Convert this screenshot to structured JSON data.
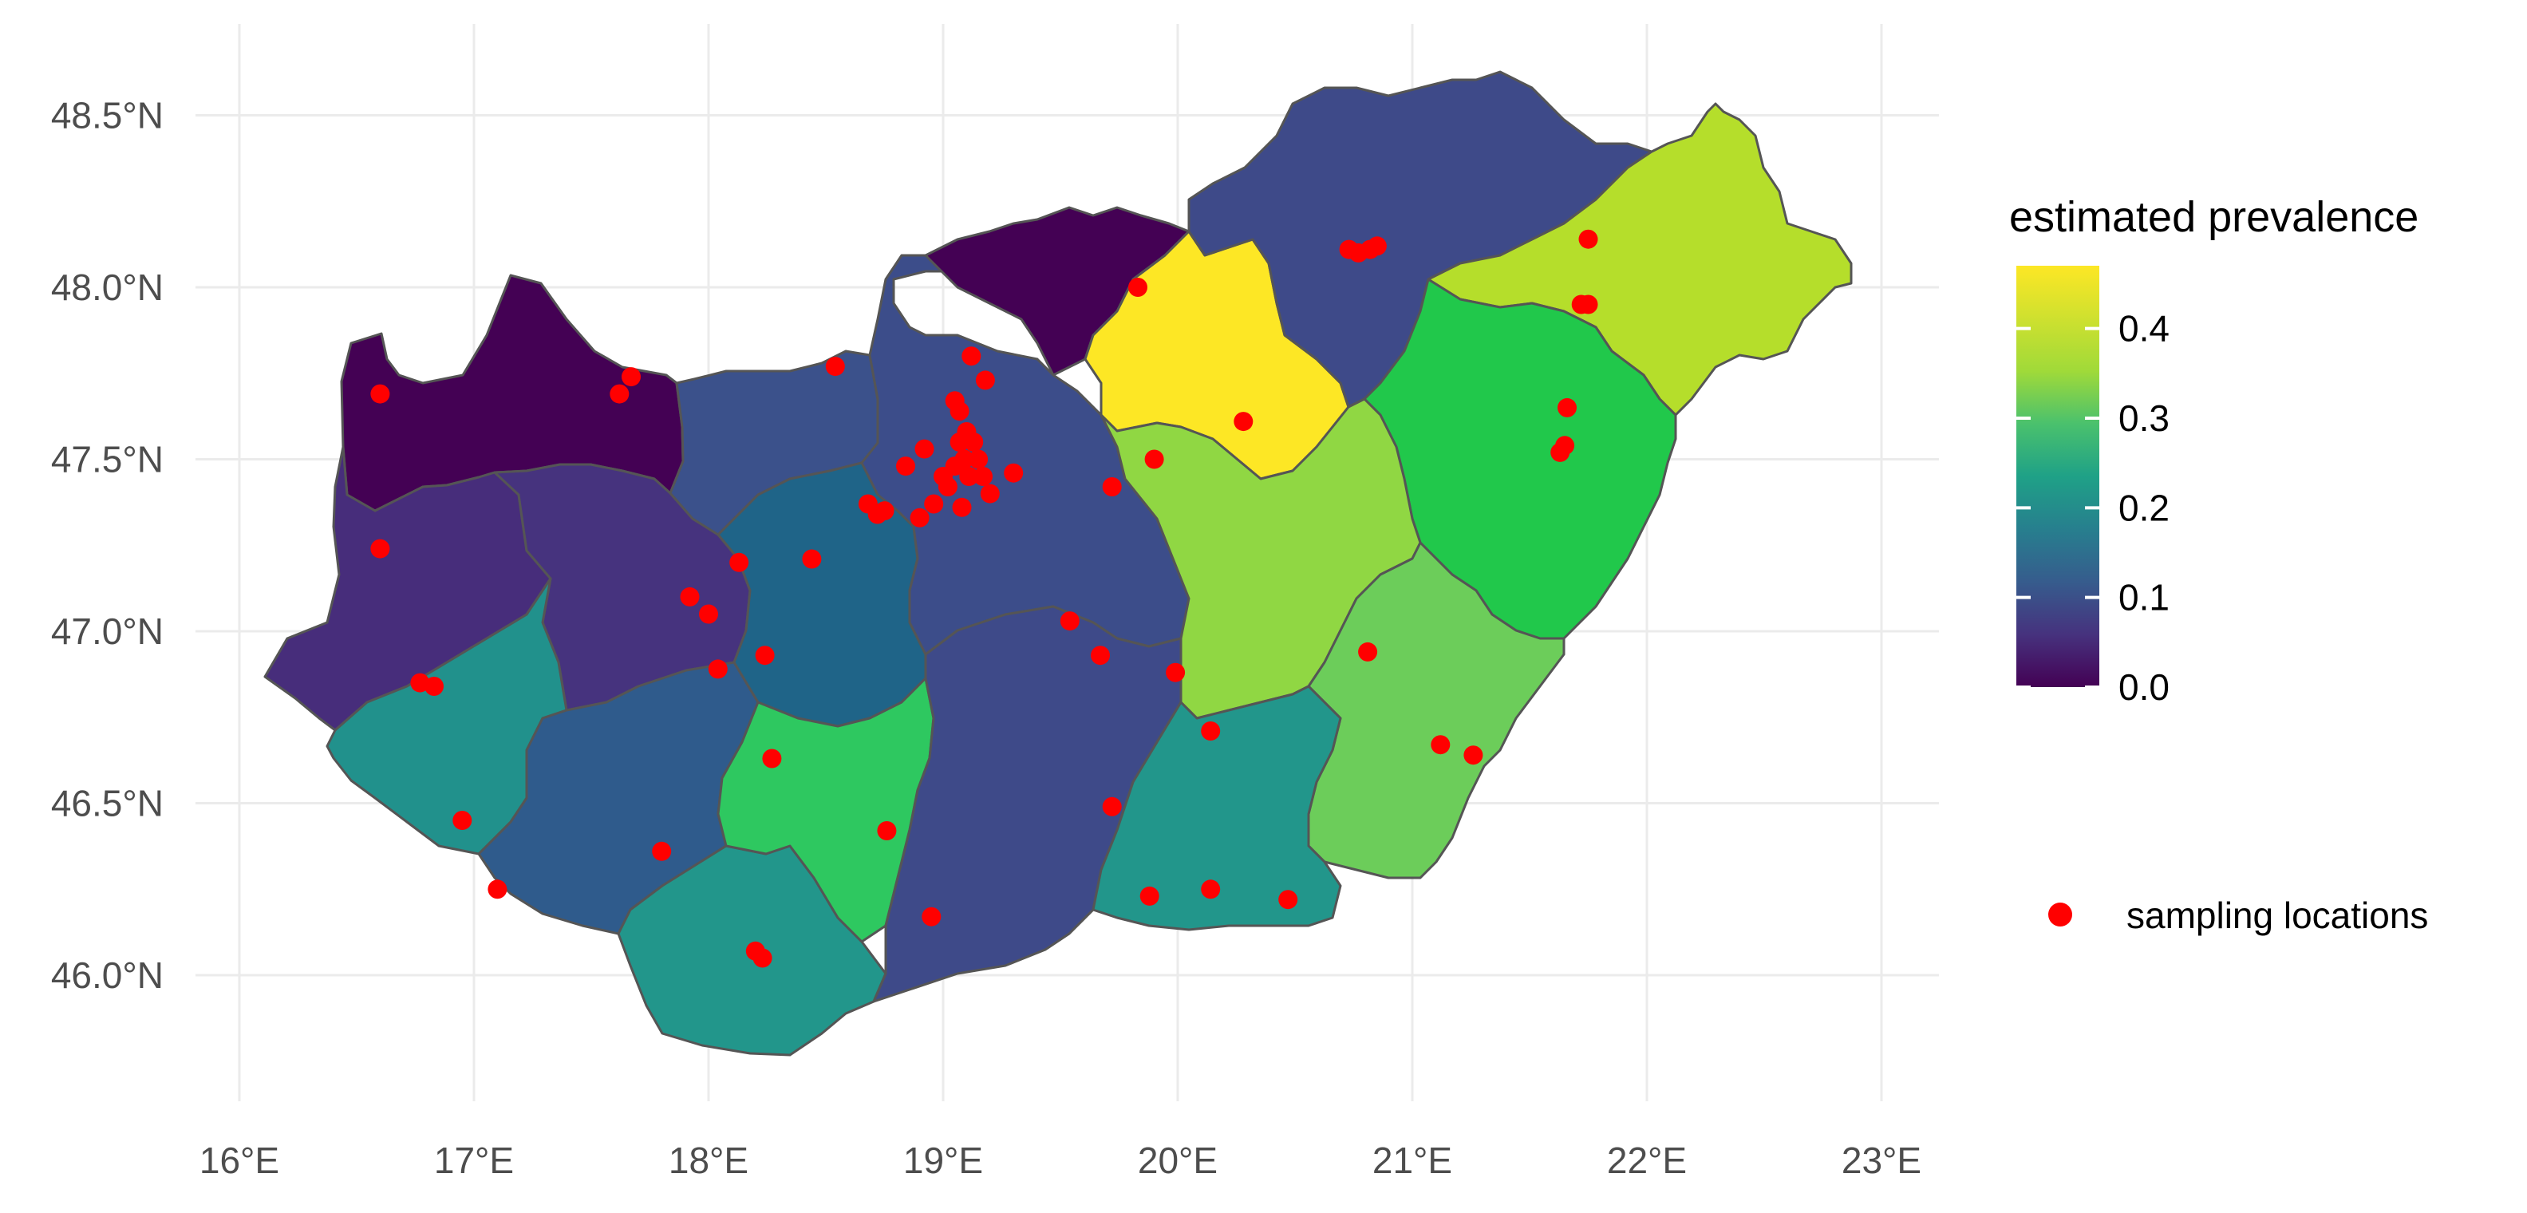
{
  "chart_data": {
    "type": "choropleth",
    "region": "Hungary counties",
    "axes": {
      "x_ticks": [
        "16°E",
        "17°E",
        "18°E",
        "19°E",
        "20°E",
        "21°E",
        "22°E",
        "23°E"
      ],
      "y_ticks": [
        "46.0°N",
        "46.5°N",
        "47.0°N",
        "47.5°N",
        "48.0°N",
        "48.5°N"
      ],
      "xlim": [
        15.9,
        23.2
      ],
      "ylim": [
        45.55,
        48.75
      ],
      "grid": true
    },
    "colorbar": {
      "title": "estimated prevalence",
      "scale": "viridis",
      "min": 0.0,
      "max": 0.47,
      "ticks": [
        0.0,
        0.1,
        0.2,
        0.3,
        0.4
      ],
      "tick_labels": [
        "0.0",
        "0.1",
        "0.2",
        "0.3",
        "0.4"
      ],
      "placement": "right"
    },
    "point_legend": {
      "label": "sampling locations",
      "color": "#ff0000"
    },
    "counties": [
      {
        "id": "gyor",
        "value": 0.02,
        "color": "#440154"
      },
      {
        "id": "vas",
        "value": 0.07,
        "color": "#472d7b"
      },
      {
        "id": "veszprem",
        "value": 0.06,
        "color": "#46337e"
      },
      {
        "id": "zala",
        "value": 0.26,
        "color": "#21918c"
      },
      {
        "id": "somogy",
        "value": 0.14,
        "color": "#2f5b8c"
      },
      {
        "id": "baranya",
        "value": 0.25,
        "color": "#22968b"
      },
      {
        "id": "komarom",
        "value": 0.12,
        "color": "#3b518b"
      },
      {
        "id": "fejer",
        "value": 0.19,
        "color": "#1f6488"
      },
      {
        "id": "tolna",
        "value": 0.35,
        "color": "#2ec860"
      },
      {
        "id": "pest",
        "value": 0.11,
        "color": "#3c4d8a"
      },
      {
        "id": "bacs",
        "value": 0.11,
        "color": "#3e4a89"
      },
      {
        "id": "nograd",
        "value": 0.01,
        "color": "#440154"
      },
      {
        "id": "heves",
        "value": 0.47,
        "color": "#fde725"
      },
      {
        "id": "borsod",
        "value": 0.11,
        "color": "#3e4a89"
      },
      {
        "id": "szabolcs",
        "value": 0.42,
        "color": "#b5de2b"
      },
      {
        "id": "hajdu",
        "value": 0.35,
        "color": "#21c84b"
      },
      {
        "id": "szolnok",
        "value": 0.4,
        "color": "#90d743"
      },
      {
        "id": "bekes",
        "value": 0.37,
        "color": "#6ccd5a"
      },
      {
        "id": "csongrad",
        "value": 0.25,
        "color": "#22968b"
      }
    ],
    "sampling_locations": [
      [
        16.6,
        47.69
      ],
      [
        17.62,
        47.69
      ],
      [
        17.67,
        47.74
      ],
      [
        16.6,
        47.24
      ],
      [
        16.77,
        46.85
      ],
      [
        16.83,
        46.84
      ],
      [
        16.95,
        46.45
      ],
      [
        17.1,
        46.25
      ],
      [
        17.92,
        47.1
      ],
      [
        18.0,
        47.05
      ],
      [
        18.04,
        46.89
      ],
      [
        18.13,
        47.2
      ],
      [
        18.24,
        46.93
      ],
      [
        18.44,
        47.21
      ],
      [
        18.54,
        47.77
      ],
      [
        18.27,
        46.63
      ],
      [
        17.8,
        46.36
      ],
      [
        18.2,
        46.07
      ],
      [
        18.23,
        46.05
      ],
      [
        18.68,
        47.37
      ],
      [
        18.72,
        47.34
      ],
      [
        18.75,
        47.35
      ],
      [
        18.84,
        47.48
      ],
      [
        18.9,
        47.33
      ],
      [
        18.92,
        47.53
      ],
      [
        18.96,
        47.37
      ],
      [
        19.0,
        47.45
      ],
      [
        19.02,
        47.42
      ],
      [
        19.05,
        47.48
      ],
      [
        19.05,
        47.67
      ],
      [
        19.07,
        47.64
      ],
      [
        19.07,
        47.55
      ],
      [
        19.09,
        47.5
      ],
      [
        19.1,
        47.58
      ],
      [
        19.11,
        47.45
      ],
      [
        19.12,
        47.8
      ],
      [
        19.13,
        47.55
      ],
      [
        19.15,
        47.5
      ],
      [
        19.17,
        47.45
      ],
      [
        19.18,
        47.73
      ],
      [
        19.2,
        47.4
      ],
      [
        19.08,
        47.36
      ],
      [
        19.3,
        47.46
      ],
      [
        18.76,
        46.42
      ],
      [
        18.95,
        46.17
      ],
      [
        19.54,
        47.03
      ],
      [
        19.67,
        46.93
      ],
      [
        19.72,
        47.42
      ],
      [
        19.72,
        46.49
      ],
      [
        19.9,
        47.5
      ],
      [
        19.83,
        48.0
      ],
      [
        19.99,
        46.88
      ],
      [
        19.88,
        46.23
      ],
      [
        20.14,
        46.25
      ],
      [
        20.14,
        46.71
      ],
      [
        20.47,
        46.22
      ],
      [
        20.28,
        47.61
      ],
      [
        20.73,
        48.11
      ],
      [
        20.77,
        48.1
      ],
      [
        20.82,
        48.11
      ],
      [
        20.85,
        48.12
      ],
      [
        20.81,
        46.94
      ],
      [
        21.12,
        46.67
      ],
      [
        21.26,
        46.64
      ],
      [
        21.63,
        47.52
      ],
      [
        21.65,
        47.54
      ],
      [
        21.66,
        47.65
      ],
      [
        21.72,
        47.95
      ],
      [
        21.75,
        47.95
      ],
      [
        21.75,
        48.14
      ]
    ]
  }
}
